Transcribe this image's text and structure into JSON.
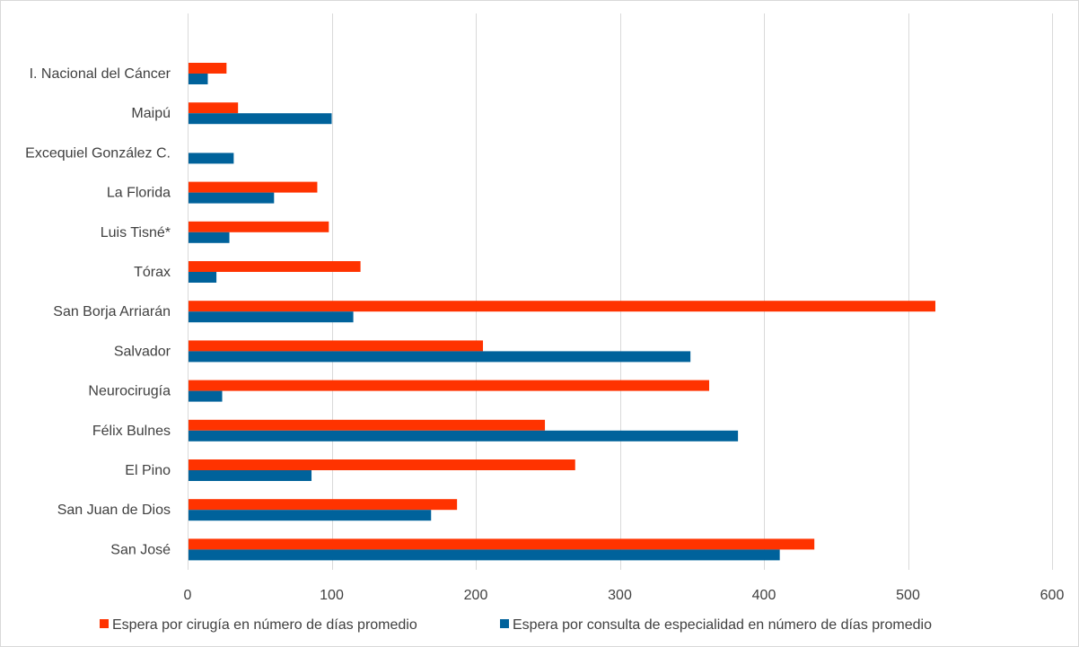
{
  "chart_data": {
    "type": "bar",
    "orientation": "horizontal",
    "title": "",
    "xlabel": "",
    "ylabel": "",
    "xlim": [
      0,
      600
    ],
    "x_ticks": [
      "0",
      "100",
      "200",
      "300",
      "400",
      "500",
      "600"
    ],
    "grid": true,
    "legend_position": "bottom",
    "categories": [
      "I. Nacional del Cáncer",
      "Maipú",
      "Excequiel González C.",
      "La Florida",
      "Luis Tisné*",
      "Tórax",
      "San Borja Arriarán",
      "Salvador",
      "Neurocirugía",
      "Félix Bulnes",
      "El Pino",
      "San Juan de Dios",
      "San José"
    ],
    "series": [
      {
        "name": "Espera por cirugía en número de días promedio",
        "color": "#ff3300",
        "values": [
          27,
          35,
          0,
          90,
          98,
          120,
          519,
          205,
          362,
          248,
          269,
          187,
          435
        ]
      },
      {
        "name": "Espera por consulta de especialidad en número de días promedio",
        "color": "#00629b",
        "values": [
          14,
          100,
          32,
          60,
          29,
          20,
          115,
          349,
          24,
          382,
          86,
          169,
          411
        ]
      }
    ]
  }
}
